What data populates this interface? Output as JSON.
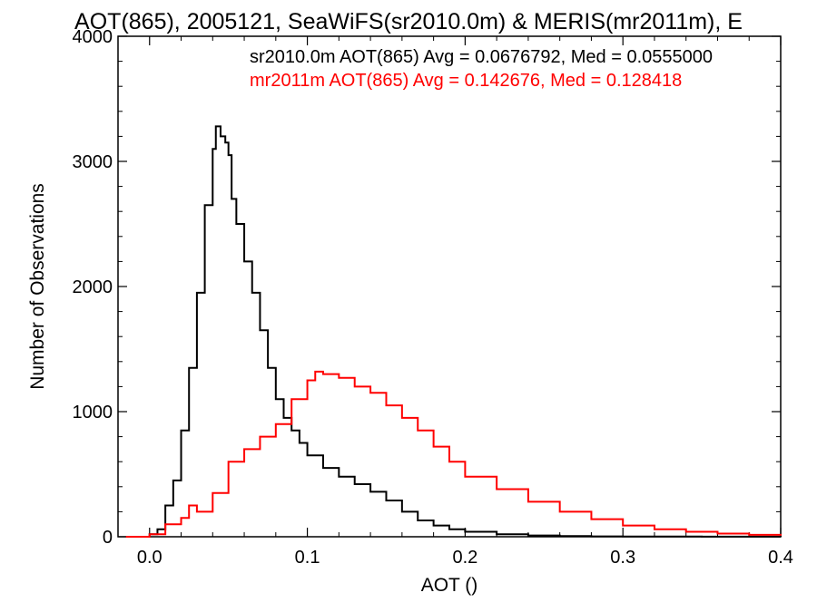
{
  "chart_data": {
    "type": "line",
    "title": "AOT(865), 2005121, SeaWiFS(sr2010.0m) & MERIS(mr2011m), E",
    "xlabel": "AOT ()",
    "ylabel": "Number of Observations",
    "xlim": [
      -0.02,
      0.4
    ],
    "ylim": [
      0,
      4000
    ],
    "xticks": [
      0.0,
      0.1,
      0.2,
      0.3,
      0.4
    ],
    "xtick_labels": [
      "0.0",
      "0.1",
      "0.2",
      "0.3",
      "0.4"
    ],
    "yticks": [
      0,
      1000,
      2000,
      3000,
      4000
    ],
    "ytick_labels": [
      "0",
      "1000",
      "2000",
      "3000",
      "4000"
    ],
    "grid": false,
    "step": true,
    "annotations": [
      {
        "text": "sr2010.0m AOT(865) Avg = 0.0676792, Med = 0.0555000",
        "color": "#000000"
      },
      {
        "text": "mr2011m AOT(865) Avg = 0.142676, Med = 0.128418",
        "color": "#ff0000"
      }
    ],
    "series": [
      {
        "color": "#000000",
        "x": [
          -0.015,
          0.0,
          0.005,
          0.01,
          0.015,
          0.02,
          0.025,
          0.03,
          0.035,
          0.04,
          0.042,
          0.045,
          0.048,
          0.05,
          0.052,
          0.055,
          0.06,
          0.065,
          0.07,
          0.075,
          0.08,
          0.085,
          0.09,
          0.095,
          0.1,
          0.11,
          0.12,
          0.13,
          0.14,
          0.15,
          0.16,
          0.17,
          0.18,
          0.19,
          0.2,
          0.22,
          0.24,
          0.26,
          0.28,
          0.3,
          0.35,
          0.4
        ],
        "y": [
          0,
          20,
          60,
          250,
          450,
          850,
          1350,
          1950,
          2650,
          3100,
          3280,
          3200,
          3150,
          3050,
          2700,
          2500,
          2200,
          1950,
          1650,
          1350,
          1100,
          950,
          850,
          750,
          650,
          550,
          480,
          420,
          360,
          290,
          200,
          130,
          90,
          60,
          40,
          20,
          10,
          5,
          3,
          2,
          1,
          0
        ]
      },
      {
        "color": "#ff0000",
        "x": [
          -0.015,
          0.0,
          0.01,
          0.02,
          0.025,
          0.03,
          0.04,
          0.05,
          0.06,
          0.07,
          0.08,
          0.09,
          0.1,
          0.105,
          0.11,
          0.12,
          0.13,
          0.14,
          0.15,
          0.16,
          0.17,
          0.18,
          0.19,
          0.2,
          0.22,
          0.24,
          0.26,
          0.28,
          0.3,
          0.32,
          0.34,
          0.36,
          0.38,
          0.4
        ],
        "y": [
          0,
          20,
          100,
          150,
          250,
          200,
          350,
          600,
          700,
          800,
          900,
          1100,
          1250,
          1320,
          1300,
          1270,
          1200,
          1150,
          1050,
          950,
          850,
          720,
          600,
          480,
          380,
          280,
          200,
          140,
          90,
          60,
          40,
          25,
          15,
          8
        ]
      }
    ]
  }
}
